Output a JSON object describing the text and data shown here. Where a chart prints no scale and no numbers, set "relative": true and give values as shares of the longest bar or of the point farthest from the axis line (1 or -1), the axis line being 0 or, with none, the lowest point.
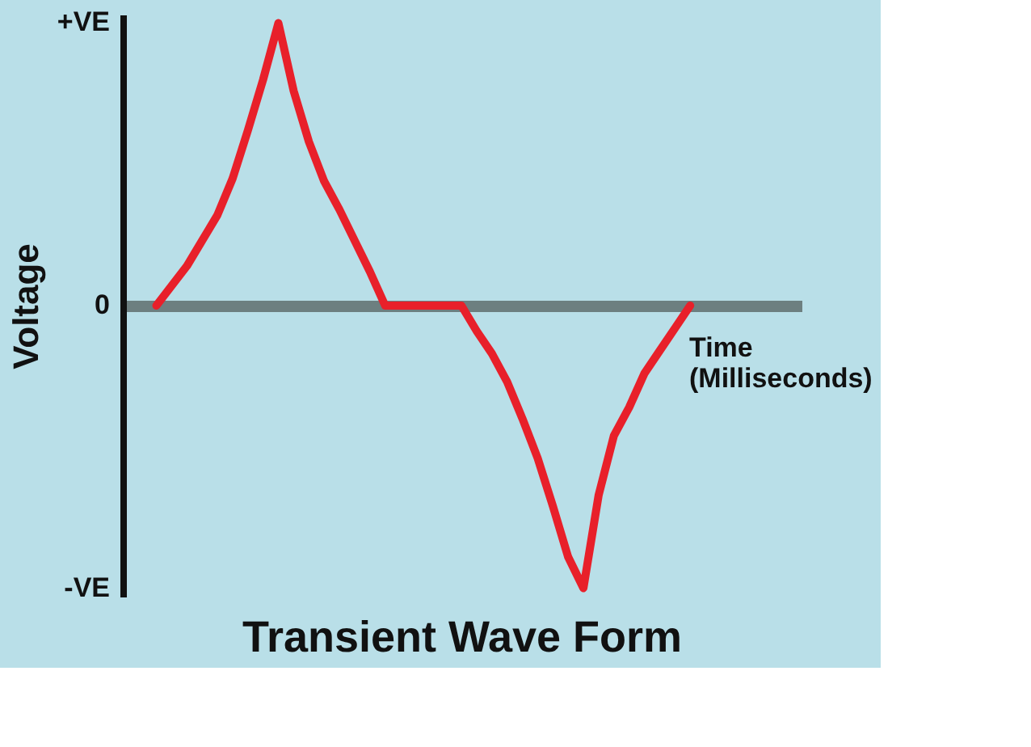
{
  "chart_data": {
    "type": "line",
    "title": "Transient Wave Form",
    "xlabel": "Time\n(Milliseconds)",
    "ylabel": "Voltage",
    "relative": true,
    "categories": [
      null,
      null,
      null,
      null,
      null,
      null,
      null,
      null,
      null,
      null,
      null,
      null,
      null,
      null,
      null,
      null,
      null,
      null,
      null,
      null,
      null,
      null,
      null,
      null,
      null,
      null,
      null,
      null,
      null,
      null,
      null,
      null,
      null,
      null,
      null,
      null
    ],
    "series": [
      {
        "color": "#e8202a",
        "values": [
          0,
          0.07,
          0.14,
          0.23,
          0.32,
          0.45,
          0.62,
          0.8,
          1.0,
          0.76,
          0.58,
          0.44,
          0.34,
          0.23,
          0.12,
          0,
          0,
          0,
          0,
          0,
          0,
          -0.09,
          -0.17,
          -0.27,
          -0.4,
          -0.54,
          -0.71,
          -0.89,
          -1.0,
          -0.67,
          -0.46,
          -0.36,
          -0.24,
          -0.16,
          -0.08,
          0
        ]
      }
    ],
    "annotations": [
      "+VE",
      "0",
      "-VE"
    ],
    "grid": false,
    "marker": "none",
    "line_style": "solid"
  }
}
